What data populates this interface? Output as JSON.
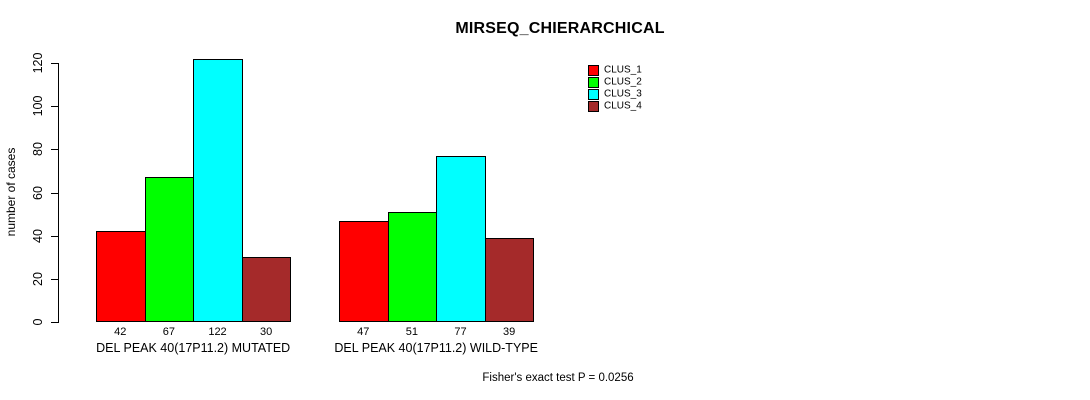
{
  "chart_data": {
    "type": "bar",
    "title": "MIRSEQ_CHIERARCHICAL",
    "ylabel": "number of cases",
    "xlabel": "",
    "ylim": [
      0,
      120
    ],
    "yticks": [
      0,
      20,
      40,
      60,
      80,
      100,
      120
    ],
    "grid": false,
    "legend_position": "top-right",
    "categories": [
      "DEL PEAK 40(17P11.2) MUTATED",
      "DEL PEAK 40(17P11.2) WILD-TYPE"
    ],
    "series": [
      {
        "name": "CLUS_1",
        "color": "#FF0000",
        "values": [
          42,
          47
        ]
      },
      {
        "name": "CLUS_2",
        "color": "#00FF00",
        "values": [
          67,
          51
        ]
      },
      {
        "name": "CLUS_3",
        "color": "#00FFFF",
        "values": [
          122,
          77
        ]
      },
      {
        "name": "CLUS_4",
        "color": "#A52A2A",
        "values": [
          30,
          39
        ]
      }
    ],
    "bar_value_labels": [
      [
        42,
        67,
        122,
        30
      ],
      [
        47,
        51,
        77,
        39
      ]
    ],
    "footnote": "Fisher's exact test P = 0.0256",
    "bar_border_color": "#000000",
    "text_color": "#000000",
    "background_color": "#FFFFFF"
  }
}
